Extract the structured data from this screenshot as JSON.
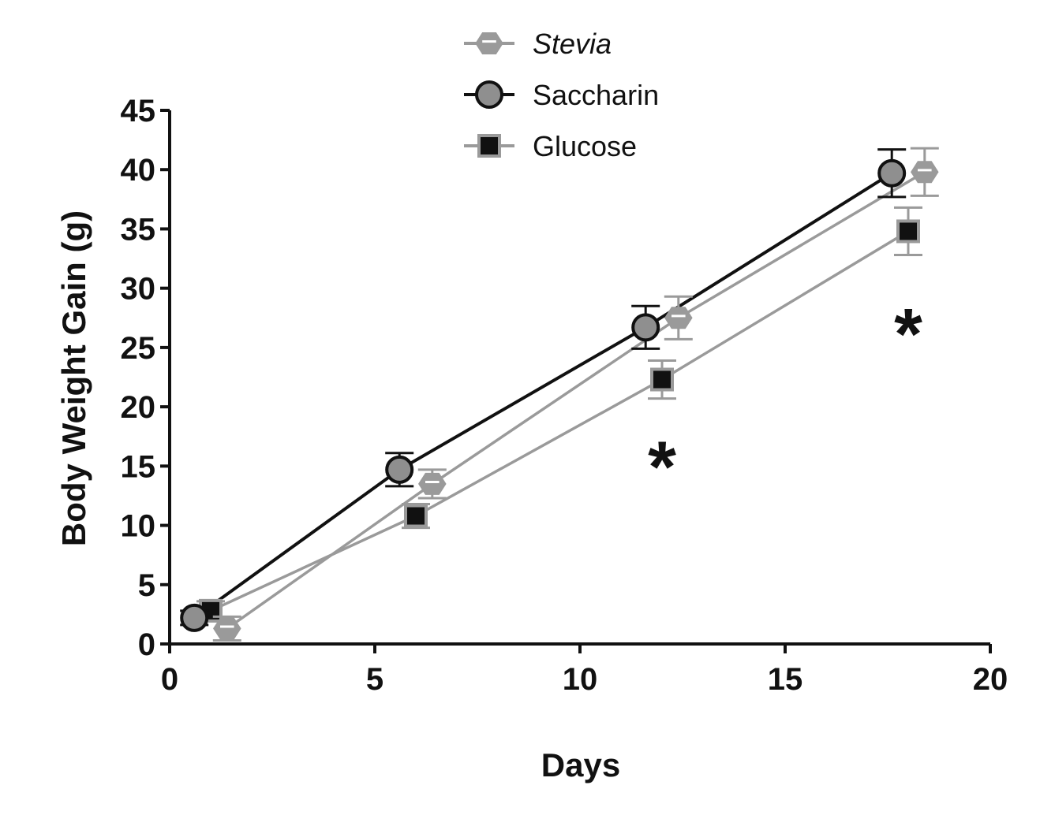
{
  "chart_data": {
    "type": "line",
    "title": "",
    "xlabel": "Days",
    "ylabel": "Body Weight Gain (g)",
    "xlim": [
      0,
      20
    ],
    "ylim": [
      0,
      45
    ],
    "x_ticks": [
      "0",
      "5",
      "10",
      "15",
      "20"
    ],
    "y_ticks": [
      "0",
      "5",
      "10",
      "15",
      "20",
      "25",
      "30",
      "35",
      "40",
      "45"
    ],
    "grid": false,
    "legend_position": "top-center",
    "series": [
      {
        "name": "Stevia",
        "marker": "hexagon",
        "color": "#9a9a9a",
        "x": [
          1.4,
          6.4,
          12.4,
          18.4
        ],
        "y": [
          1.3,
          13.5,
          27.5,
          39.8
        ],
        "error": [
          1.0,
          1.2,
          1.8,
          2.0
        ]
      },
      {
        "name": "Saccharin",
        "marker": "circle",
        "color": "#111111",
        "x": [
          0.6,
          5.6,
          11.6,
          17.6
        ],
        "y": [
          2.2,
          14.7,
          26.7,
          39.7
        ],
        "error": [
          0.6,
          1.4,
          1.8,
          2.0
        ]
      },
      {
        "name": "Glucose",
        "marker": "square",
        "color": "#9a9a9a",
        "x": [
          1.0,
          6.0,
          12.0,
          18.0
        ],
        "y": [
          2.8,
          10.8,
          22.3,
          34.8
        ],
        "error": [
          0.8,
          1.0,
          1.6,
          2.0
        ]
      }
    ],
    "annotations": [
      {
        "text": "*",
        "x": 12.0,
        "y": 15.5
      },
      {
        "text": "*",
        "x": 18.0,
        "y": 26.7
      }
    ]
  }
}
